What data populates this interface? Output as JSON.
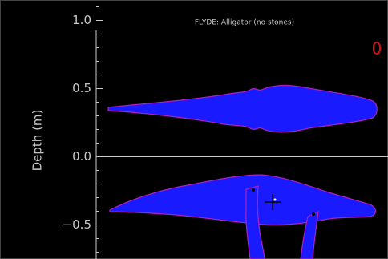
{
  "chart_data": {
    "type": "shape",
    "title": "FLYDE: Alligator (no stones)",
    "ylabel": "Depth (m)",
    "annotation": "0",
    "ylim": [
      -0.75,
      1.15
    ],
    "yticks": [
      {
        "value": 1.0,
        "label": "1.0"
      },
      {
        "value": 0.5,
        "label": "0.5"
      },
      {
        "value": 0.0,
        "label": "0.0"
      },
      {
        "value": -0.5,
        "label": "−0.5"
      }
    ],
    "minor_yticks": [
      1.1,
      0.9,
      0.8,
      0.7,
      0.6,
      0.4,
      0.3,
      0.2,
      0.1,
      -0.1,
      -0.2,
      -0.3,
      -0.4,
      -0.6,
      -0.7
    ],
    "zero_line": true,
    "color": "#1a1aff"
  }
}
